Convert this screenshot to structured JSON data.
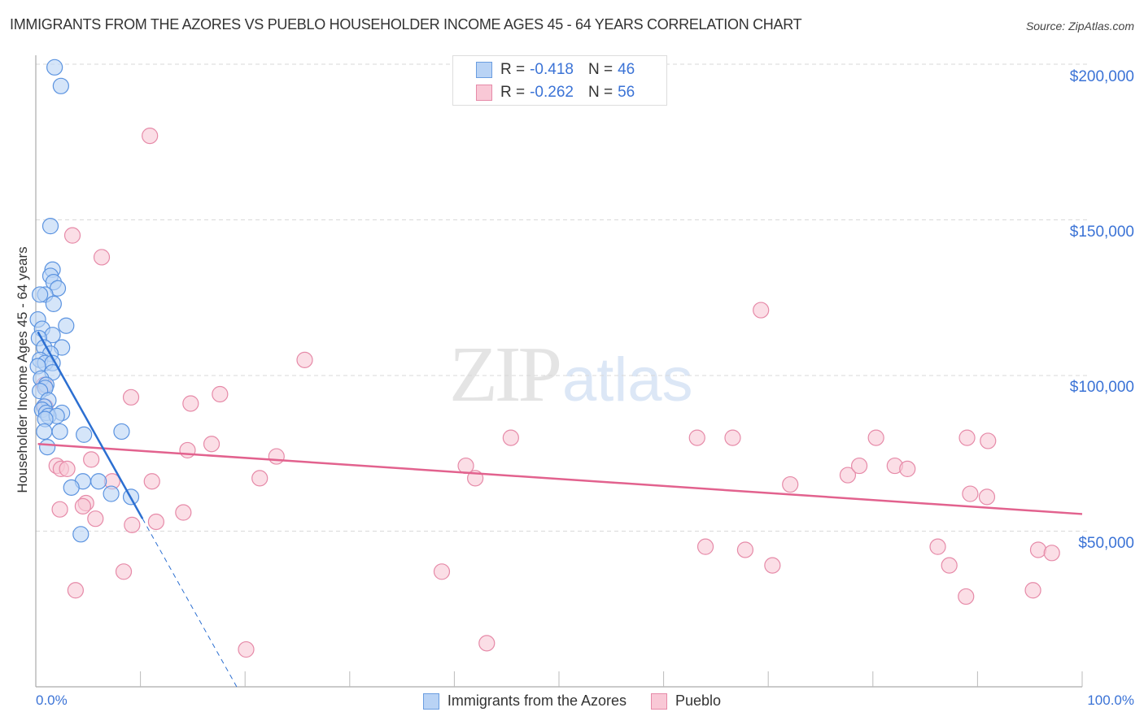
{
  "header": {
    "title": "IMMIGRANTS FROM THE AZORES VS PUEBLO HOUSEHOLDER INCOME AGES 45 - 64 YEARS CORRELATION CHART",
    "source": "Source: ZipAtlas.com"
  },
  "watermark": {
    "zip": "ZIP",
    "atlas": "atlas"
  },
  "legend": {
    "series": [
      {
        "name": "Immigrants from the Azores",
        "r_label": "R =",
        "r_value": "-0.418",
        "n_label": "N =",
        "n_value": "46",
        "fill": "#b9d3f5",
        "stroke": "#6a9de0"
      },
      {
        "name": "Pueblo",
        "r_label": "R =",
        "r_value": "-0.262",
        "n_label": "N =",
        "n_value": "56",
        "fill": "#f9c8d6",
        "stroke": "#e68aa8"
      }
    ]
  },
  "axes": {
    "ylabel": "Householder Income Ages 45 - 64 years",
    "x_min_label": "0.0%",
    "x_max_label": "100.0%",
    "y_ticks": [
      "$200,000",
      "$150,000",
      "$100,000",
      "$50,000"
    ]
  },
  "colors": {
    "blue_point_fill": "#b9d3f5",
    "blue_point_stroke": "#5b93e0",
    "blue_line": "#2c6fd1",
    "pink_point_fill": "#f9c8d6",
    "pink_point_stroke": "#e68aa8",
    "pink_line": "#e2628e",
    "tick_label": "#3b73d6",
    "grid": "#d9d9d9"
  },
  "chart_data": {
    "type": "scatter",
    "title": "IMMIGRANTS FROM THE AZORES VS PUEBLO HOUSEHOLDER INCOME AGES 45 - 64 YEARS CORRELATION CHART",
    "xlabel": "",
    "ylabel": "Householder Income Ages 45 - 64 years",
    "xlim": [
      0,
      100
    ],
    "ylim": [
      0,
      205000
    ],
    "x_unit": "%",
    "grid": true,
    "legend_position": "top-center and bottom",
    "y_ticks": [
      50000,
      100000,
      150000,
      200000
    ],
    "x_tick_labels": [
      "0.0%",
      "100.0%"
    ],
    "series": [
      {
        "name": "Immigrants from the Azores",
        "r": -0.418,
        "n": 46,
        "trend": {
          "x": [
            0.2,
            10.2
          ],
          "y": [
            114000,
            54000
          ],
          "extends_dashed_to": [
            19.2,
            0
          ]
        },
        "points": [
          [
            1.8,
            199000
          ],
          [
            2.4,
            193000
          ],
          [
            1.4,
            148000
          ],
          [
            1.6,
            134000
          ],
          [
            1.4,
            132000
          ],
          [
            1.7,
            130000
          ],
          [
            2.1,
            128000
          ],
          [
            0.9,
            126000
          ],
          [
            0.4,
            126000
          ],
          [
            1.7,
            123000
          ],
          [
            0.2,
            118000
          ],
          [
            2.9,
            116000
          ],
          [
            0.6,
            115000
          ],
          [
            1.6,
            113000
          ],
          [
            0.3,
            112000
          ],
          [
            0.8,
            109000
          ],
          [
            2.5,
            109000
          ],
          [
            1.4,
            107000
          ],
          [
            0.4,
            105000
          ],
          [
            0.9,
            104000
          ],
          [
            1.6,
            104000
          ],
          [
            0.2,
            103000
          ],
          [
            1.6,
            101000
          ],
          [
            0.5,
            99000
          ],
          [
            1.0,
            97000
          ],
          [
            0.9,
            96000
          ],
          [
            0.4,
            95000
          ],
          [
            1.2,
            92000
          ],
          [
            0.8,
            90000
          ],
          [
            0.6,
            89000
          ],
          [
            1.0,
            88000
          ],
          [
            2.5,
            88000
          ],
          [
            1.2,
            87000
          ],
          [
            2.0,
            87000
          ],
          [
            0.9,
            86000
          ],
          [
            0.8,
            82000
          ],
          [
            2.3,
            82000
          ],
          [
            8.2,
            82000
          ],
          [
            4.6,
            81000
          ],
          [
            1.1,
            77000
          ],
          [
            6.0,
            66000
          ],
          [
            4.5,
            66000
          ],
          [
            3.4,
            64000
          ],
          [
            7.2,
            62000
          ],
          [
            9.1,
            61000
          ],
          [
            4.3,
            49000
          ]
        ]
      },
      {
        "name": "Pueblo",
        "r": -0.262,
        "n": 56,
        "trend": {
          "x": [
            0.2,
            100
          ],
          "y": [
            78000,
            55500
          ]
        },
        "points": [
          [
            10.9,
            177000
          ],
          [
            3.5,
            145000
          ],
          [
            6.3,
            138000
          ],
          [
            69.3,
            121000
          ],
          [
            25.7,
            105000
          ],
          [
            0.8,
            97000
          ],
          [
            9.1,
            93000
          ],
          [
            14.8,
            91000
          ],
          [
            17.6,
            94000
          ],
          [
            0.9,
            90000
          ],
          [
            45.4,
            80000
          ],
          [
            63.2,
            80000
          ],
          [
            66.6,
            80000
          ],
          [
            80.3,
            80000
          ],
          [
            89.0,
            80000
          ],
          [
            91.0,
            79000
          ],
          [
            14.5,
            76000
          ],
          [
            16.8,
            78000
          ],
          [
            23.0,
            74000
          ],
          [
            5.3,
            73000
          ],
          [
            41.1,
            71000
          ],
          [
            2.0,
            71000
          ],
          [
            2.4,
            70000
          ],
          [
            3.0,
            70000
          ],
          [
            77.6,
            68000
          ],
          [
            78.7,
            71000
          ],
          [
            82.1,
            71000
          ],
          [
            83.3,
            70000
          ],
          [
            11.1,
            66000
          ],
          [
            21.4,
            67000
          ],
          [
            42.0,
            67000
          ],
          [
            7.3,
            66000
          ],
          [
            72.1,
            65000
          ],
          [
            89.3,
            62000
          ],
          [
            90.9,
            61000
          ],
          [
            4.8,
            59000
          ],
          [
            4.5,
            58000
          ],
          [
            2.3,
            57000
          ],
          [
            14.1,
            56000
          ],
          [
            5.7,
            54000
          ],
          [
            9.2,
            52000
          ],
          [
            11.5,
            53000
          ],
          [
            64.0,
            45000
          ],
          [
            67.8,
            44000
          ],
          [
            86.2,
            45000
          ],
          [
            95.8,
            44000
          ],
          [
            97.1,
            43000
          ],
          [
            70.4,
            39000
          ],
          [
            87.3,
            39000
          ],
          [
            8.4,
            37000
          ],
          [
            38.8,
            37000
          ],
          [
            3.8,
            31000
          ],
          [
            88.9,
            29000
          ],
          [
            95.3,
            31000
          ],
          [
            20.1,
            12000
          ],
          [
            43.1,
            14000
          ]
        ]
      }
    ]
  }
}
